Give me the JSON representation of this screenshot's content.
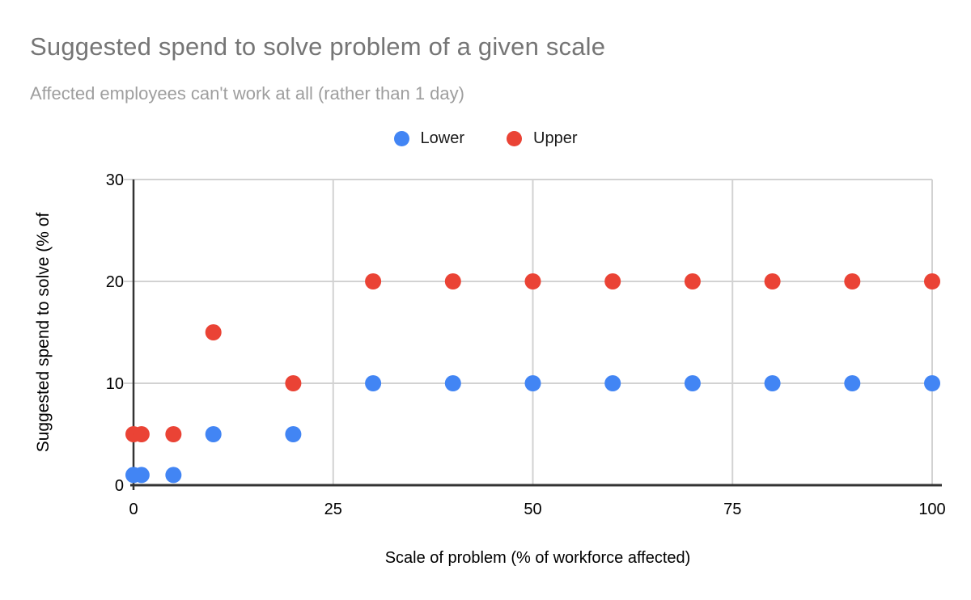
{
  "page": {
    "background": "#ffffff"
  },
  "chart_data": {
    "type": "scatter",
    "title": "Suggested spend to solve problem of a given scale",
    "subtitle": "Affected employees can't work at all (rather than 1 day)",
    "xlabel": "Scale of problem (% of workforce affected)",
    "ylabel": "Suggested spend to solve (% of",
    "xlim": [
      0,
      100
    ],
    "ylim": [
      0,
      30
    ],
    "x_ticks": [
      0,
      25,
      50,
      75,
      100
    ],
    "y_ticks": [
      0,
      10,
      20,
      30
    ],
    "grid": true,
    "legend_position": "top",
    "series": [
      {
        "name": "Lower",
        "color": "#4285f4",
        "points": [
          [
            0,
            1
          ],
          [
            1,
            1
          ],
          [
            5,
            1
          ],
          [
            10,
            5
          ],
          [
            20,
            5
          ],
          [
            30,
            10
          ],
          [
            40,
            10
          ],
          [
            50,
            10
          ],
          [
            60,
            10
          ],
          [
            70,
            10
          ],
          [
            80,
            10
          ],
          [
            90,
            10
          ],
          [
            100,
            10
          ]
        ]
      },
      {
        "name": "Upper",
        "color": "#ea4335",
        "points": [
          [
            0,
            5
          ],
          [
            1,
            5
          ],
          [
            5,
            5
          ],
          [
            10,
            15
          ],
          [
            20,
            10
          ],
          [
            30,
            20
          ],
          [
            40,
            20
          ],
          [
            50,
            20
          ],
          [
            60,
            20
          ],
          [
            70,
            20
          ],
          [
            80,
            20
          ],
          [
            90,
            20
          ],
          [
            100,
            20
          ]
        ]
      }
    ],
    "colors": {
      "title": "#757575",
      "subtitle": "#9e9e9e",
      "axis_line": "#333333",
      "gridline": "#d2d2d2",
      "tick_label": "#000000",
      "axis_title": "#000000"
    }
  }
}
